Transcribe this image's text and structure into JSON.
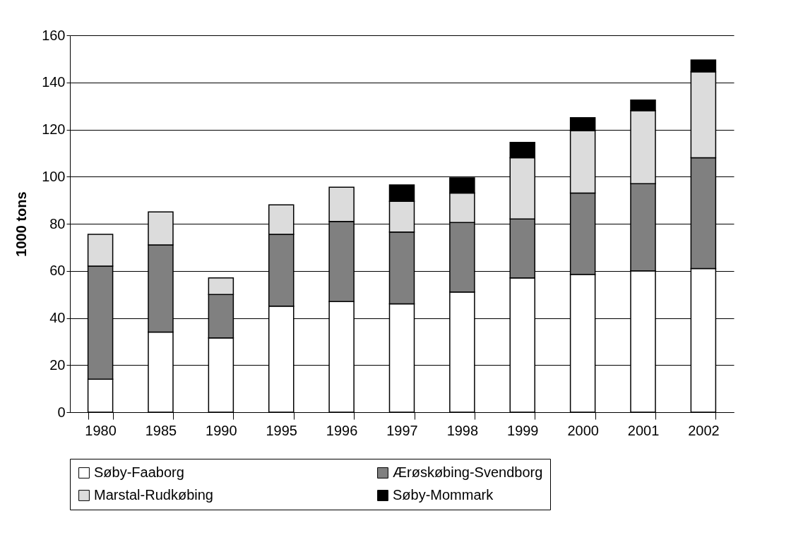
{
  "chart_data": {
    "type": "bar",
    "stacked": true,
    "ylabel": "1000 tons",
    "categories": [
      "1980",
      "1985",
      "1990",
      "1995",
      "1996",
      "1997",
      "1998",
      "1999",
      "2000",
      "2001",
      "2002"
    ],
    "series": [
      {
        "name": "Søby-Faaborg",
        "color": "#ffffff",
        "values": [
          14,
          34,
          31.5,
          45,
          47,
          46,
          51,
          57,
          58.5,
          60,
          61
        ]
      },
      {
        "name": "Ærøskøbing-Svendborg",
        "color": "#808080",
        "values": [
          48,
          37,
          18.5,
          30.5,
          34,
          30.5,
          29.5,
          25,
          34.5,
          37,
          47
        ]
      },
      {
        "name": "Marstal-Rudkøbing",
        "color": "#dcdcdc",
        "values": [
          13.5,
          14,
          7,
          12.5,
          14.5,
          13,
          12.5,
          26,
          26.5,
          31,
          36.5
        ]
      },
      {
        "name": "Søby-Mommark",
        "color": "#000000",
        "values": [
          null,
          null,
          null,
          null,
          null,
          7,
          6.5,
          6.5,
          5.5,
          4.5,
          5
        ]
      }
    ],
    "ylim": [
      0,
      160
    ],
    "yticks": [
      0,
      20,
      40,
      60,
      80,
      100,
      120,
      140,
      160
    ],
    "grid": "y",
    "legend": "bottom"
  }
}
